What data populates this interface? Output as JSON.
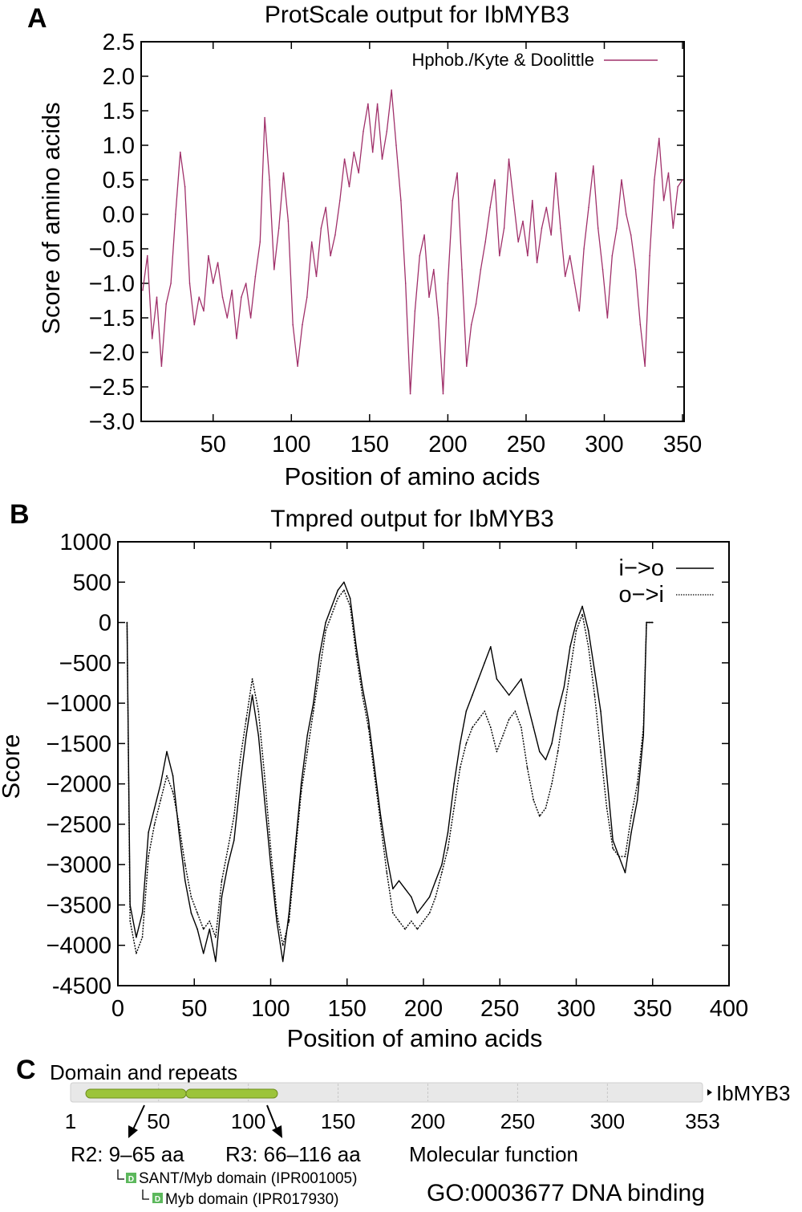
{
  "panels": {
    "a": {
      "letter": "A",
      "title": "ProtScale output for IbMYB3",
      "xlabel": "Position of amino acids",
      "ylabel": "Score of amino acids",
      "legend": "Hphob./Kyte & Doolittle"
    },
    "b": {
      "letter": "B",
      "title": "Tmpred output for IbMYB3",
      "xlabel": "Position of amino acids",
      "ylabel": "Score",
      "legend": [
        "i−>o",
        "o−>i"
      ]
    },
    "c": {
      "letter": "C",
      "title": "Domain and repeats",
      "protein": "IbMYB3",
      "ticks": [
        "1",
        "50",
        "100",
        "150",
        "200",
        "250",
        "300",
        "353"
      ],
      "repeats": [
        "R2: 9–65 aa",
        "R3: 66–116 aa"
      ],
      "domains": [
        "SANT/Myb domain (IPR001005)",
        "Myb domain (IPR017930)"
      ],
      "domain_badge": "D",
      "mf_label": "Molecular function",
      "go_term": "GO:0003677 DNA binding",
      "colors": {
        "domain_fill": "#9cc43a",
        "track": "#e8e8e8",
        "badge": "#5cb85c"
      }
    }
  },
  "chart_data": [
    {
      "type": "line",
      "title": "ProtScale output for IbMYB3",
      "xlabel": "Position of amino acids",
      "ylabel": "Score of amino acids",
      "xlim": [
        4,
        351
      ],
      "ylim": [
        -3.0,
        2.5
      ],
      "xticks": [
        50,
        100,
        150,
        200,
        250,
        300,
        350
      ],
      "yticks": [
        -3.0,
        -2.5,
        -2.0,
        -1.5,
        -1.0,
        -0.5,
        0.0,
        0.5,
        1.0,
        1.5,
        2.0,
        2.5
      ],
      "ytick_labels": [
        "−3.0",
        "−2.5",
        "−2.0",
        "−1.5",
        "−1.0",
        "−0.5",
        "0.0",
        "0.5",
        "1.0",
        "1.5",
        "2.0",
        "2.5"
      ],
      "legend_position": "top-right",
      "series": [
        {
          "name": "Hphob./Kyte & Doolittle",
          "color": "#a0306a",
          "x": [
            5,
            8,
            11,
            14,
            17,
            20,
            23,
            26,
            29,
            32,
            35,
            38,
            41,
            44,
            47,
            50,
            53,
            56,
            59,
            62,
            65,
            68,
            71,
            74,
            77,
            80,
            83,
            86,
            89,
            92,
            95,
            98,
            101,
            104,
            107,
            110,
            113,
            116,
            119,
            122,
            125,
            128,
            131,
            134,
            137,
            140,
            143,
            146,
            149,
            152,
            155,
            158,
            161,
            164,
            167,
            170,
            173,
            176,
            179,
            182,
            185,
            188,
            191,
            194,
            197,
            200,
            203,
            206,
            209,
            212,
            215,
            218,
            221,
            224,
            227,
            230,
            233,
            236,
            239,
            242,
            245,
            248,
            251,
            254,
            257,
            260,
            263,
            266,
            269,
            272,
            275,
            278,
            281,
            284,
            287,
            290,
            293,
            296,
            299,
            302,
            305,
            308,
            311,
            314,
            317,
            320,
            323,
            326,
            329,
            332,
            335,
            338,
            341,
            344,
            347,
            350
          ],
          "y": [
            -1.1,
            -0.6,
            -1.8,
            -1.2,
            -2.2,
            -1.3,
            -1.0,
            0.0,
            0.9,
            0.4,
            -1.0,
            -1.6,
            -1.2,
            -1.4,
            -0.6,
            -1.0,
            -0.7,
            -1.2,
            -1.5,
            -1.1,
            -1.8,
            -1.2,
            -1.0,
            -1.5,
            -0.9,
            -0.4,
            1.4,
            0.5,
            -0.8,
            -0.2,
            0.6,
            -0.1,
            -1.6,
            -2.2,
            -1.6,
            -1.2,
            -0.4,
            -0.9,
            -0.2,
            0.1,
            -0.6,
            -0.3,
            0.2,
            0.8,
            0.4,
            0.9,
            0.6,
            1.2,
            1.6,
            0.9,
            1.6,
            0.8,
            1.2,
            1.8,
            1.0,
            0.2,
            -1.0,
            -2.6,
            -1.4,
            -0.6,
            -0.3,
            -1.2,
            -0.8,
            -1.5,
            -2.6,
            -1.0,
            0.2,
            0.6,
            -0.8,
            -2.2,
            -1.6,
            -1.3,
            -0.8,
            -0.4,
            0.1,
            0.5,
            -0.6,
            -0.2,
            0.8,
            0.2,
            -0.4,
            -0.1,
            -0.6,
            0.2,
            -0.7,
            -0.2,
            0.1,
            -0.3,
            0.6,
            -0.2,
            -0.9,
            -0.6,
            -1.0,
            -1.4,
            -0.5,
            0.1,
            0.7,
            -0.2,
            -0.8,
            -1.5,
            -0.6,
            -0.2,
            0.5,
            0.0,
            -0.3,
            -0.8,
            -1.6,
            -2.2,
            -0.6,
            0.5,
            1.1,
            0.2,
            0.6,
            -0.2,
            0.4,
            0.5
          ]
        }
      ]
    },
    {
      "type": "line",
      "title": "Tmpred output for IbMYB3",
      "xlabel": "Position of amino acids",
      "ylabel": "Score",
      "xlim": [
        0,
        400
      ],
      "ylim": [
        -4500,
        1000
      ],
      "xticks": [
        0,
        50,
        100,
        150,
        200,
        250,
        300,
        350,
        400
      ],
      "yticks": [
        -4500,
        -4000,
        -3500,
        -3000,
        -2500,
        -2000,
        -1500,
        -1000,
        -500,
        0,
        500,
        1000
      ],
      "ytick_labels": [
        "-4500",
        "−4000",
        "−3500",
        "−3000",
        "−2500",
        "−2000",
        "−1500",
        "−1000",
        "−500",
        "0",
        "500",
        "1000"
      ],
      "legend_position": "top-right",
      "series": [
        {
          "name": "i−>o",
          "color": "#000000",
          "x": [
            6,
            8,
            12,
            16,
            20,
            24,
            28,
            32,
            36,
            40,
            44,
            48,
            52,
            56,
            60,
            64,
            68,
            72,
            76,
            80,
            84,
            88,
            92,
            96,
            100,
            104,
            108,
            112,
            116,
            120,
            124,
            128,
            132,
            136,
            140,
            144,
            148,
            152,
            156,
            160,
            164,
            168,
            172,
            176,
            180,
            184,
            188,
            192,
            196,
            200,
            204,
            208,
            212,
            216,
            220,
            224,
            228,
            232,
            236,
            240,
            244,
            248,
            252,
            256,
            260,
            264,
            268,
            272,
            276,
            280,
            284,
            288,
            292,
            296,
            300,
            304,
            308,
            312,
            316,
            320,
            324,
            328,
            332,
            336,
            340,
            344,
            346,
            350
          ],
          "y": [
            0,
            -3500,
            -3900,
            -3600,
            -2600,
            -2300,
            -2000,
            -1600,
            -1900,
            -2600,
            -3200,
            -3600,
            -3800,
            -4100,
            -3800,
            -4200,
            -3400,
            -3000,
            -2700,
            -2000,
            -1400,
            -900,
            -1400,
            -2200,
            -3000,
            -3700,
            -4200,
            -3600,
            -2800,
            -2000,
            -1400,
            -1000,
            -400,
            0,
            200,
            400,
            500,
            300,
            -300,
            -800,
            -1200,
            -1800,
            -2400,
            -2900,
            -3300,
            -3200,
            -3300,
            -3400,
            -3600,
            -3500,
            -3400,
            -3200,
            -3000,
            -2600,
            -2000,
            -1500,
            -1100,
            -900,
            -700,
            -500,
            -300,
            -700,
            -800,
            -900,
            -800,
            -700,
            -1000,
            -1300,
            -1600,
            -1700,
            -1500,
            -1100,
            -800,
            -300,
            0,
            200,
            -100,
            -600,
            -1100,
            -1900,
            -2700,
            -2900,
            -3100,
            -2600,
            -2200,
            -1400,
            0,
            0
          ]
        },
        {
          "name": "o−>i",
          "color": "#000000",
          "x": [
            6,
            8,
            12,
            16,
            20,
            24,
            28,
            32,
            36,
            40,
            44,
            48,
            52,
            56,
            60,
            64,
            68,
            72,
            76,
            80,
            84,
            88,
            92,
            96,
            100,
            104,
            108,
            112,
            116,
            120,
            124,
            128,
            132,
            136,
            140,
            144,
            148,
            152,
            156,
            160,
            164,
            168,
            172,
            176,
            180,
            184,
            188,
            192,
            196,
            200,
            204,
            208,
            212,
            216,
            220,
            224,
            228,
            232,
            236,
            240,
            244,
            248,
            252,
            256,
            260,
            264,
            268,
            272,
            276,
            280,
            284,
            288,
            292,
            296,
            300,
            304,
            308,
            312,
            316,
            320,
            324,
            328,
            332,
            336,
            340,
            344,
            346,
            350
          ],
          "y": [
            0,
            -3700,
            -4100,
            -3900,
            -2900,
            -2500,
            -2200,
            -1900,
            -2100,
            -2500,
            -3000,
            -3400,
            -3600,
            -3800,
            -3700,
            -3900,
            -3200,
            -2800,
            -2400,
            -1700,
            -1200,
            -700,
            -1100,
            -1900,
            -2800,
            -3600,
            -4000,
            -3700,
            -2900,
            -2100,
            -1600,
            -1100,
            -600,
            -100,
            100,
            300,
            400,
            200,
            -400,
            -900,
            -1300,
            -1900,
            -2500,
            -3100,
            -3600,
            -3700,
            -3800,
            -3700,
            -3800,
            -3700,
            -3600,
            -3400,
            -3100,
            -2800,
            -2300,
            -1800,
            -1500,
            -1300,
            -1200,
            -1100,
            -1300,
            -1600,
            -1400,
            -1200,
            -1100,
            -1300,
            -1800,
            -2200,
            -2400,
            -2300,
            -2000,
            -1600,
            -1100,
            -600,
            -100,
            100,
            -300,
            -900,
            -1600,
            -2300,
            -2800,
            -2900,
            -2900,
            -2400,
            -2000,
            -1300,
            0,
            0
          ]
        }
      ]
    }
  ]
}
